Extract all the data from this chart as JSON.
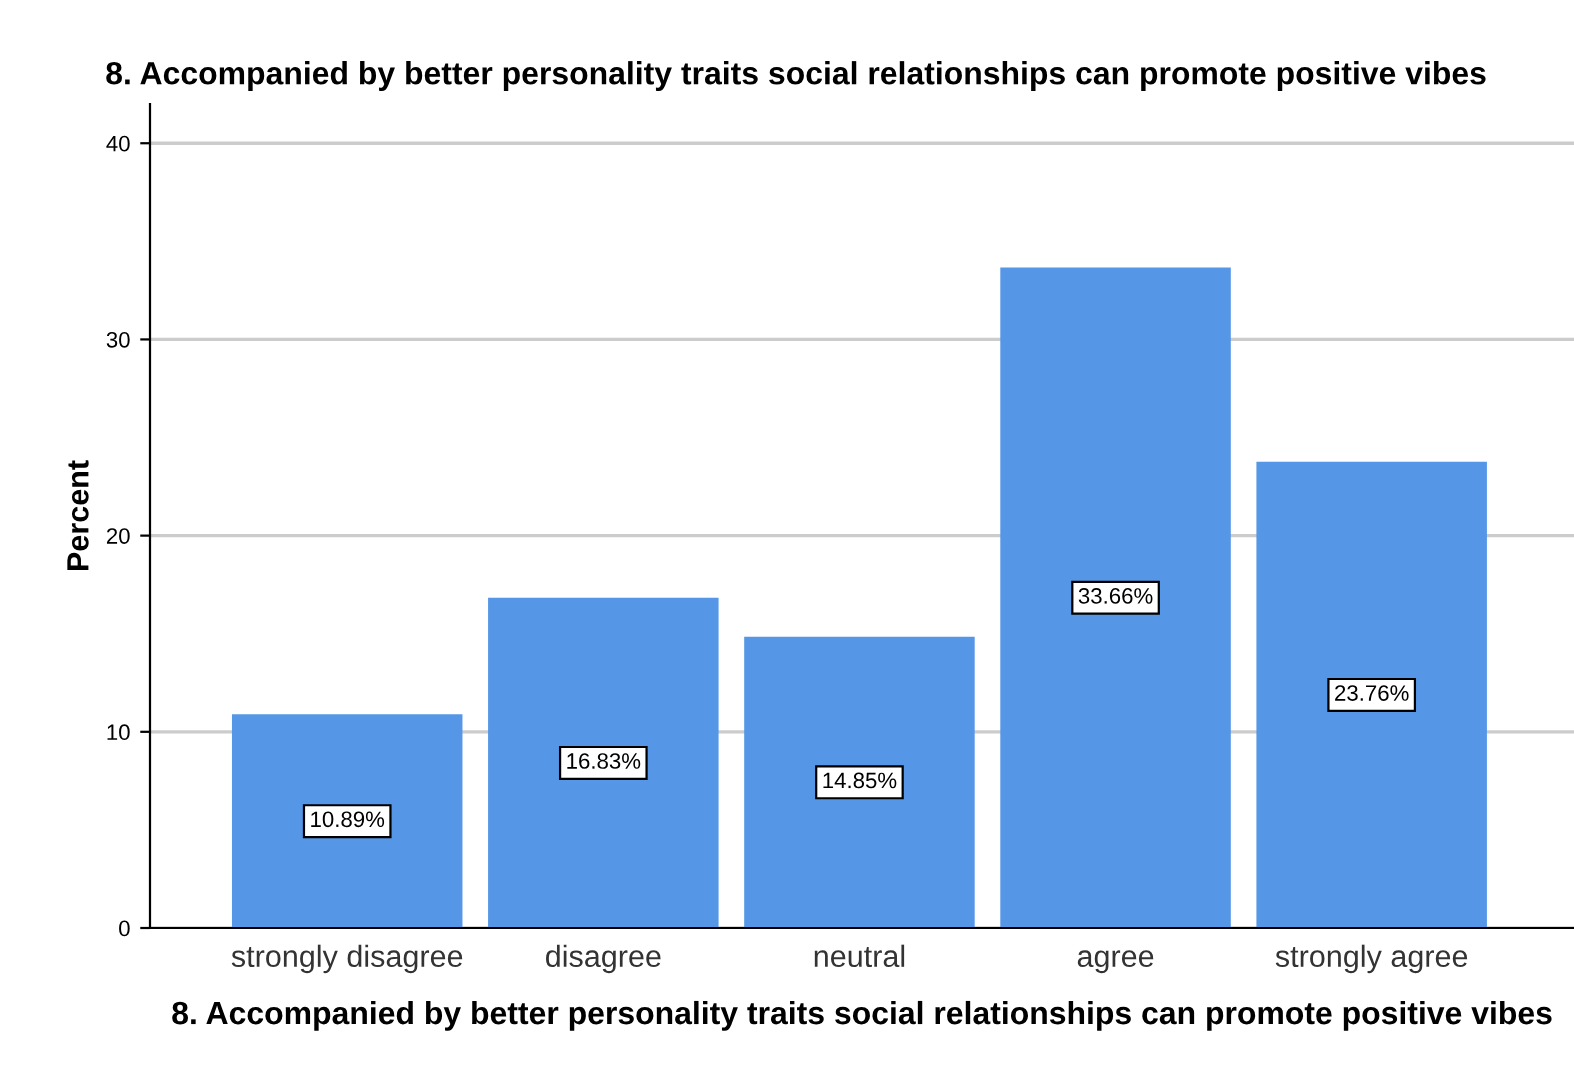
{
  "chart_data": {
    "type": "bar",
    "title": "8. Accompanied by better personality traits social relationships can promote positive vibes",
    "xlabel": "8. Accompanied by better personality traits social relationships can promote positive vibes",
    "ylabel": "Percent",
    "categories": [
      "strongly disagree",
      "disagree",
      "neutral",
      "agree",
      "strongly agree"
    ],
    "values": [
      10.89,
      16.83,
      14.85,
      33.66,
      23.76
    ],
    "value_labels": [
      "10.89%",
      "16.83%",
      "14.85%",
      "33.66%",
      "23.76%"
    ],
    "color": "#5596e6",
    "ylim": [
      0,
      42
    ],
    "yticks": [
      0,
      10,
      20,
      30,
      40
    ],
    "grid": "y",
    "legend": false
  }
}
